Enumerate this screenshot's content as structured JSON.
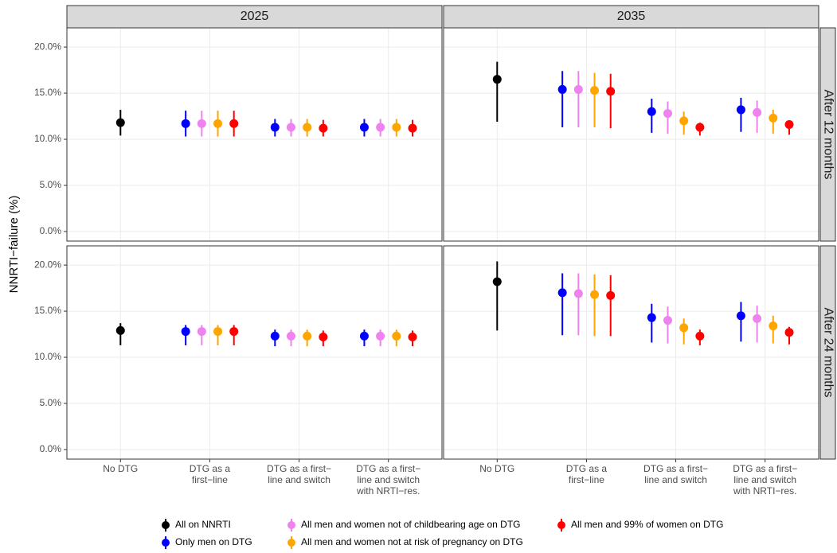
{
  "chart_data": {
    "type": "pointrange",
    "y_label": "NNRTI−failure (%)",
    "columns": [
      "2025",
      "2035"
    ],
    "rows": [
      "After 12 months",
      "After 24 months"
    ],
    "categories": [
      [
        "No DTG"
      ],
      [
        "DTG as a",
        "first−line"
      ],
      [
        "DTG as a first−",
        "line and switch"
      ],
      [
        "DTG as a first−",
        "line and switch",
        "with NRTI−res."
      ]
    ],
    "ylim": [
      -1.04,
      22.08
    ],
    "yticks": [
      {
        "value": 0,
        "label": "0.0%"
      },
      {
        "value": 5,
        "label": "5.0%"
      },
      {
        "value": 10,
        "label": "10.0%"
      },
      {
        "value": 15,
        "label": "15.0%"
      },
      {
        "value": 20,
        "label": "20.0%"
      }
    ],
    "grid": true,
    "series": [
      {
        "name": "All on NNRTI",
        "color": "#000000",
        "values": [
          [
            11.8,
            null,
            null,
            null
          ],
          [
            16.5,
            null,
            null,
            null
          ],
          [
            12.9,
            null,
            null,
            null
          ],
          [
            18.2,
            null,
            null,
            null
          ]
        ],
        "lower": [
          [
            10.4,
            null,
            null,
            null
          ],
          [
            11.9,
            null,
            null,
            null
          ],
          [
            11.3,
            null,
            null,
            null
          ],
          [
            12.9,
            null,
            null,
            null
          ]
        ],
        "upper": [
          [
            13.2,
            null,
            null,
            null
          ],
          [
            18.4,
            null,
            null,
            null
          ],
          [
            13.7,
            null,
            null,
            null
          ],
          [
            20.4,
            null,
            null,
            null
          ]
        ]
      },
      {
        "name": "Only men on DTG",
        "color": "#0000FF",
        "values": [
          [
            null,
            11.7,
            11.3,
            11.3
          ],
          [
            null,
            15.4,
            13.0,
            13.2
          ],
          [
            null,
            12.8,
            12.3,
            12.3
          ],
          [
            null,
            17.0,
            14.3,
            14.5
          ]
        ],
        "lower": [
          [
            null,
            10.3,
            10.3,
            10.3
          ],
          [
            null,
            11.3,
            10.7,
            10.8
          ],
          [
            null,
            11.3,
            11.2,
            11.2
          ],
          [
            null,
            12.4,
            11.6,
            11.7
          ]
        ],
        "upper": [
          [
            null,
            13.1,
            12.2,
            12.2
          ],
          [
            null,
            17.4,
            14.4,
            14.5
          ],
          [
            null,
            13.5,
            13.0,
            13.0
          ],
          [
            null,
            19.1,
            15.8,
            16.0
          ]
        ]
      },
      {
        "name": "All men and women not of childbearing age on DTG",
        "color": "#EE82EE",
        "values": [
          [
            null,
            11.7,
            11.3,
            11.3
          ],
          [
            null,
            15.4,
            12.8,
            12.9
          ],
          [
            null,
            12.8,
            12.3,
            12.3
          ],
          [
            null,
            16.9,
            14.0,
            14.2
          ]
        ],
        "lower": [
          [
            null,
            10.3,
            10.3,
            10.3
          ],
          [
            null,
            11.3,
            10.6,
            10.7
          ],
          [
            null,
            11.3,
            11.2,
            11.2
          ],
          [
            null,
            12.4,
            11.5,
            11.6
          ]
        ],
        "upper": [
          [
            null,
            13.1,
            12.2,
            12.2
          ],
          [
            null,
            17.4,
            14.1,
            14.2
          ],
          [
            null,
            13.5,
            13.0,
            13.0
          ],
          [
            null,
            19.1,
            15.5,
            15.6
          ]
        ]
      },
      {
        "name": "All men and women not at risk of pregnancy on DTG",
        "color": "#FFA500",
        "values": [
          [
            null,
            11.7,
            11.3,
            11.3
          ],
          [
            null,
            15.3,
            12.0,
            12.3
          ],
          [
            null,
            12.8,
            12.3,
            12.3
          ],
          [
            null,
            16.8,
            13.2,
            13.4
          ]
        ],
        "lower": [
          [
            null,
            10.3,
            10.3,
            10.3
          ],
          [
            null,
            11.3,
            10.5,
            10.6
          ],
          [
            null,
            11.3,
            11.2,
            11.2
          ],
          [
            null,
            12.3,
            11.4,
            11.5
          ]
        ],
        "upper": [
          [
            null,
            13.1,
            12.2,
            12.2
          ],
          [
            null,
            17.2,
            13.0,
            13.2
          ],
          [
            null,
            13.5,
            13.0,
            13.0
          ],
          [
            null,
            19.0,
            14.2,
            14.5
          ]
        ]
      },
      {
        "name": "All men and 99% of women on DTG",
        "color": "#FF0000",
        "values": [
          [
            null,
            11.7,
            11.2,
            11.2
          ],
          [
            null,
            15.2,
            11.3,
            11.6
          ],
          [
            null,
            12.8,
            12.2,
            12.2
          ],
          [
            null,
            16.7,
            12.3,
            12.7
          ]
        ],
        "lower": [
          [
            null,
            10.3,
            10.3,
            10.3
          ],
          [
            null,
            11.2,
            10.4,
            10.5
          ],
          [
            null,
            11.3,
            11.2,
            11.2
          ],
          [
            null,
            12.3,
            11.3,
            11.4
          ]
        ],
        "upper": [
          [
            null,
            13.1,
            12.1,
            12.1
          ],
          [
            null,
            17.1,
            11.8,
            12.0
          ],
          [
            null,
            13.5,
            12.9,
            12.9
          ],
          [
            null,
            18.9,
            13.0,
            13.3
          ]
        ]
      }
    ]
  }
}
